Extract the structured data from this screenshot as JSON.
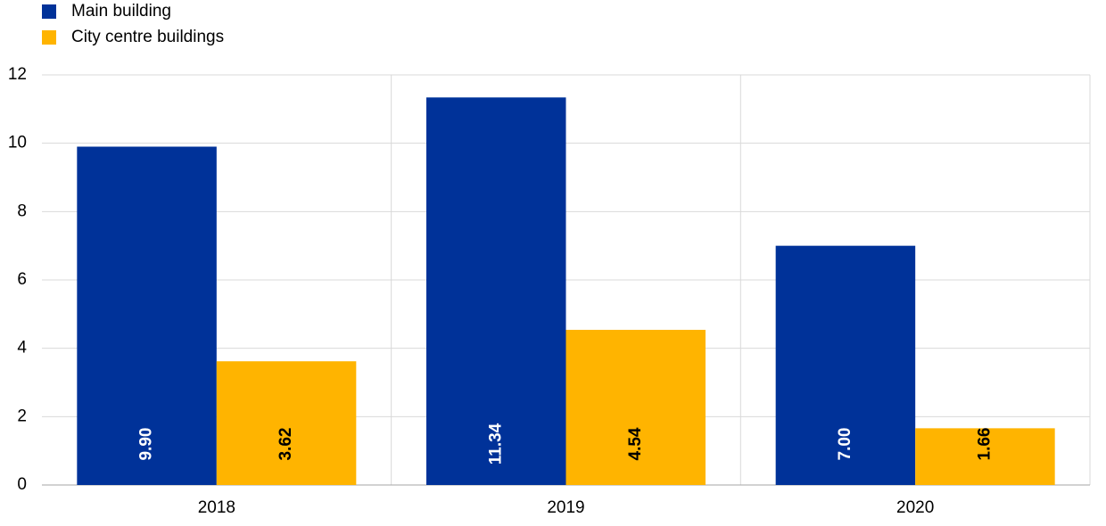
{
  "chart_data": {
    "type": "bar",
    "categories": [
      "2018",
      "2019",
      "2020"
    ],
    "series": [
      {
        "name": "Main building",
        "color": "#003299",
        "values": [
          9.9,
          11.34,
          7.0
        ],
        "value_labels": [
          "9.90",
          "11.34",
          "7.00"
        ]
      },
      {
        "name": "City centre buildings",
        "color": "#ffb400",
        "values": [
          3.62,
          4.54,
          1.66
        ],
        "value_labels": [
          "3.62",
          "4.54",
          "1.66"
        ]
      }
    ],
    "ylim": [
      0,
      12
    ],
    "yticks": [
      0,
      2,
      4,
      6,
      8,
      10,
      12
    ],
    "grid": true,
    "legend": "top-left"
  }
}
